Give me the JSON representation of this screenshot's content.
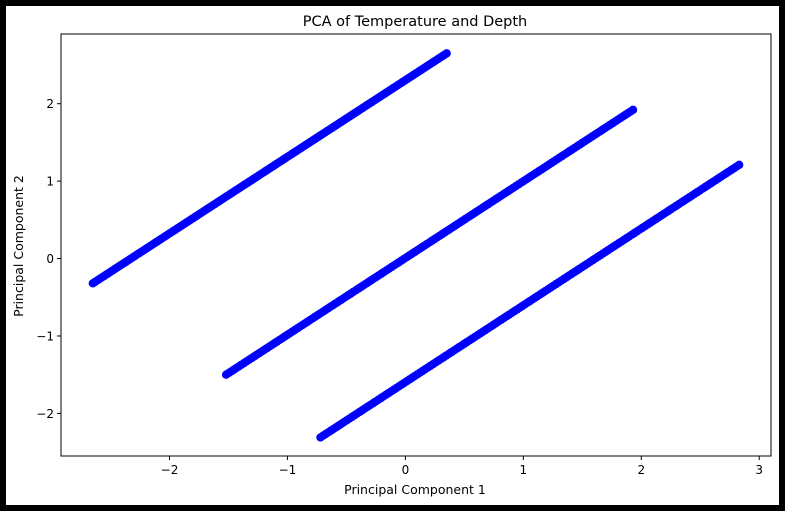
{
  "chart_data": {
    "type": "scatter",
    "title": "PCA of Temperature and Depth",
    "xlabel": "Principal Component 1",
    "ylabel": "Principal Component 2",
    "xlim": [
      -2.92,
      3.1
    ],
    "ylim": [
      -2.55,
      2.9
    ],
    "xticks": [
      -2,
      -1,
      0,
      1,
      2,
      3
    ],
    "yticks": [
      -2,
      -1,
      0,
      1,
      2
    ],
    "xtick_labels": [
      "−2",
      "−1",
      "0",
      "1",
      "2",
      "3"
    ],
    "ytick_labels": [
      "−2",
      "−1",
      "0",
      "1",
      "2"
    ],
    "grid": false,
    "legend": false,
    "marker_color": "#0000ff",
    "series": [
      {
        "x": [
          -2.65,
          0.35
        ],
        "y": [
          -0.32,
          2.65
        ]
      },
      {
        "x": [
          -1.52,
          1.93
        ],
        "y": [
          -1.5,
          1.92
        ]
      },
      {
        "x": [
          -0.72,
          2.83
        ],
        "y": [
          -2.31,
          1.21
        ]
      }
    ]
  }
}
